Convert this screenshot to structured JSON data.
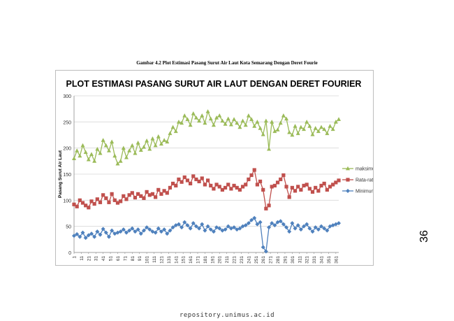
{
  "caption": "Gambar 4.2 Plot Estimasi Pasang Surut Air Laut Kota Semarang Dengan Deret Fourie",
  "page_number": "36",
  "footer": "repository.unimus.ac.id",
  "chart_data": {
    "type": "line",
    "title": "PLOT ESTIMASI PASANG SURUT AIR LAUT DENGAN DERET FOURIER",
    "xlabel": "",
    "ylabel": "Pasang Surut Air Laut",
    "ylim": [
      0,
      300
    ],
    "yticks": [
      0,
      50,
      100,
      150,
      200,
      250,
      300
    ],
    "xlim": [
      1,
      365
    ],
    "xticks": [
      1,
      11,
      21,
      31,
      41,
      51,
      61,
      71,
      81,
      91,
      101,
      111,
      121,
      131,
      141,
      151,
      161,
      171,
      181,
      191,
      201,
      211,
      221,
      231,
      241,
      251,
      261,
      271,
      281,
      291,
      301,
      311,
      321,
      331,
      341,
      351,
      361
    ],
    "grid": "horizontal",
    "legend_position": "right",
    "series": [
      {
        "name": "maksimum",
        "color": "#9bbb59",
        "marker": "triangle",
        "x": [
          1,
          5,
          9,
          13,
          17,
          21,
          25,
          29,
          33,
          37,
          41,
          45,
          49,
          53,
          57,
          61,
          65,
          69,
          73,
          77,
          81,
          85,
          89,
          93,
          97,
          101,
          105,
          109,
          113,
          117,
          121,
          125,
          129,
          133,
          137,
          141,
          145,
          149,
          153,
          157,
          161,
          165,
          169,
          173,
          177,
          181,
          185,
          189,
          193,
          197,
          201,
          205,
          209,
          213,
          217,
          221,
          225,
          229,
          233,
          237,
          241,
          245,
          249,
          253,
          257,
          261,
          265,
          269,
          273,
          277,
          281,
          285,
          289,
          293,
          297,
          301,
          305,
          309,
          313,
          317,
          321,
          325,
          329,
          333,
          337,
          341,
          345,
          349,
          353,
          357,
          361,
          365
        ],
        "values": [
          180,
          195,
          185,
          205,
          192,
          178,
          188,
          175,
          198,
          190,
          215,
          205,
          195,
          212,
          185,
          170,
          175,
          200,
          182,
          195,
          205,
          190,
          210,
          196,
          202,
          214,
          198,
          218,
          205,
          222,
          208,
          215,
          212,
          228,
          240,
          232,
          250,
          248,
          262,
          255,
          244,
          266,
          258,
          252,
          262,
          248,
          270,
          256,
          244,
          258,
          262,
          252,
          246,
          256,
          245,
          255,
          248,
          240,
          252,
          244,
          262,
          255,
          242,
          250,
          238,
          226,
          252,
          198,
          250,
          232,
          235,
          248,
          262,
          256,
          230,
          225,
          242,
          228,
          240,
          236,
          250,
          242,
          226,
          238,
          232,
          240,
          236,
          228,
          242,
          236,
          250,
          255
        ]
      },
      {
        "name": "Rata-rata",
        "color": "#c0504d",
        "marker": "square",
        "x": [
          1,
          5,
          9,
          13,
          17,
          21,
          25,
          29,
          33,
          37,
          41,
          45,
          49,
          53,
          57,
          61,
          65,
          69,
          73,
          77,
          81,
          85,
          89,
          93,
          97,
          101,
          105,
          109,
          113,
          117,
          121,
          125,
          129,
          133,
          137,
          141,
          145,
          149,
          153,
          157,
          161,
          165,
          169,
          173,
          177,
          181,
          185,
          189,
          193,
          197,
          201,
          205,
          209,
          213,
          217,
          221,
          225,
          229,
          233,
          237,
          241,
          245,
          249,
          253,
          257,
          261,
          265,
          269,
          273,
          277,
          281,
          285,
          289,
          293,
          297,
          301,
          305,
          309,
          313,
          317,
          321,
          325,
          329,
          333,
          337,
          341,
          345,
          349,
          353,
          357,
          361,
          365
        ],
        "values": [
          92,
          88,
          100,
          95,
          90,
          86,
          98,
          93,
          102,
          96,
          110,
          104,
          96,
          112,
          100,
          95,
          98,
          108,
          102,
          110,
          114,
          105,
          112,
          108,
          104,
          116,
          110,
          112,
          106,
          120,
          112,
          118,
          114,
          124,
          132,
          128,
          140,
          135,
          144,
          138,
          132,
          146,
          140,
          136,
          142,
          130,
          138,
          128,
          122,
          130,
          126,
          120,
          124,
          130,
          122,
          128,
          124,
          120,
          126,
          130,
          140,
          148,
          158,
          130,
          136,
          120,
          84,
          90,
          126,
          128,
          134,
          140,
          148,
          126,
          106,
          124,
          118,
          126,
          120,
          128,
          130,
          122,
          116,
          124,
          118,
          128,
          132,
          120,
          126,
          130,
          134,
          138
        ]
      },
      {
        "name": "Minimum",
        "color": "#4f81bd",
        "marker": "diamond",
        "x": [
          1,
          5,
          9,
          13,
          17,
          21,
          25,
          29,
          33,
          37,
          41,
          45,
          49,
          53,
          57,
          61,
          65,
          69,
          73,
          77,
          81,
          85,
          89,
          93,
          97,
          101,
          105,
          109,
          113,
          117,
          121,
          125,
          129,
          133,
          137,
          141,
          145,
          149,
          153,
          157,
          161,
          165,
          169,
          173,
          177,
          181,
          185,
          189,
          193,
          197,
          201,
          205,
          209,
          213,
          217,
          221,
          225,
          229,
          233,
          237,
          241,
          245,
          249,
          253,
          257,
          261,
          265,
          269,
          273,
          277,
          281,
          285,
          289,
          293,
          297,
          301,
          305,
          309,
          313,
          317,
          321,
          325,
          329,
          333,
          337,
          341,
          345,
          349,
          353,
          357,
          361,
          365
        ],
        "values": [
          32,
          35,
          30,
          38,
          28,
          33,
          36,
          30,
          40,
          34,
          45,
          38,
          30,
          42,
          36,
          38,
          40,
          44,
          38,
          42,
          46,
          40,
          44,
          36,
          42,
          48,
          44,
          40,
          38,
          46,
          40,
          44,
          36,
          42,
          48,
          52,
          54,
          48,
          58,
          52,
          46,
          56,
          50,
          46,
          54,
          42,
          50,
          44,
          40,
          48,
          46,
          42,
          44,
          50,
          46,
          48,
          44,
          46,
          50,
          52,
          56,
          62,
          66,
          54,
          58,
          10,
          2,
          48,
          56,
          52,
          58,
          60,
          54,
          48,
          40,
          56,
          46,
          52,
          44,
          50,
          54,
          46,
          40,
          48,
          44,
          50,
          46,
          42,
          50,
          52,
          54,
          56
        ]
      }
    ]
  }
}
